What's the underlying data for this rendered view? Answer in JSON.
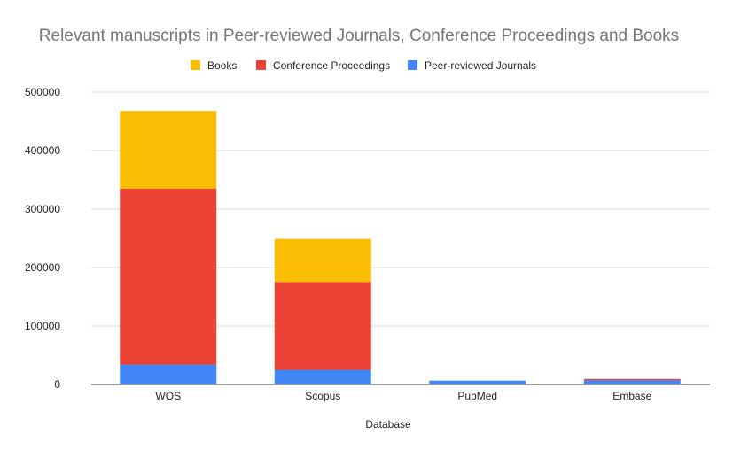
{
  "chart_data": {
    "type": "bar",
    "stacked": true,
    "title": "Relevant manuscripts in Peer-reviewed Journals, Conference Proceedings and Books",
    "xlabel": "Database",
    "ylabel": "",
    "categories": [
      "WOS",
      "Scopus",
      "PubMed",
      "Embase"
    ],
    "series": [
      {
        "name": "Peer-reviewed Journals",
        "color": "#4285f4",
        "values": [
          34000,
          25000,
          6500,
          7500
        ]
      },
      {
        "name": "Conference Proceedings",
        "color": "#ea4335",
        "values": [
          301000,
          150000,
          0,
          2000
        ]
      },
      {
        "name": "Books",
        "color": "#fbbc04",
        "values": [
          133000,
          74000,
          0,
          0
        ]
      }
    ],
    "legend_order": [
      "Books",
      "Conference Proceedings",
      "Peer-reviewed Journals"
    ],
    "ylim": [
      0,
      500000
    ],
    "yticks": [
      "0",
      "100000",
      "200000",
      "300000",
      "400000",
      "500000"
    ],
    "grid": true,
    "legend_position": "top"
  }
}
